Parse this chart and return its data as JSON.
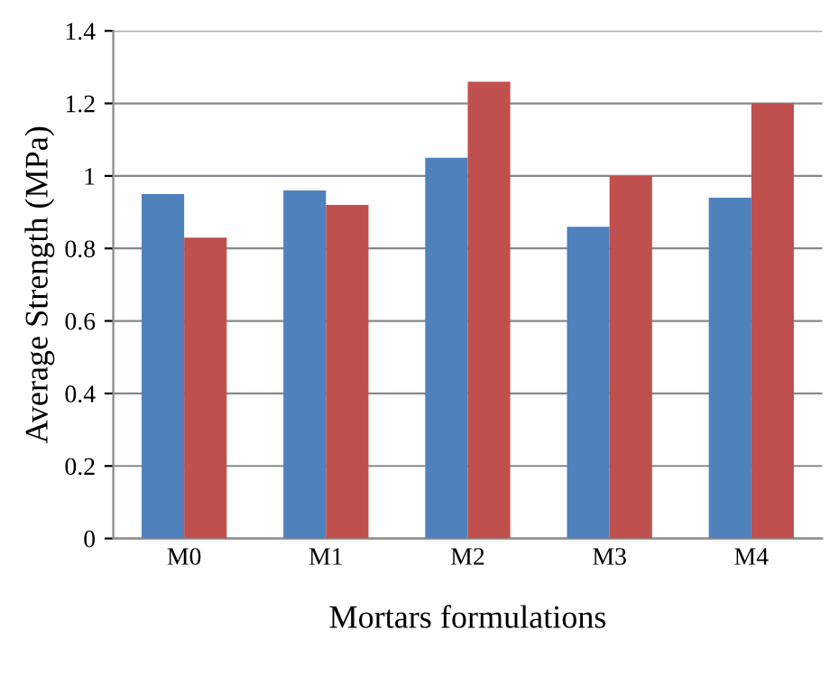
{
  "chart_data": {
    "type": "bar",
    "xlabel": "Mortars formulations",
    "ylabel": "Average Strength (MPa)",
    "categories": [
      "M0",
      "M1",
      "M2",
      "M3",
      "M4"
    ],
    "series": [
      {
        "color": "#4f81bd",
        "values": [
          0.95,
          0.96,
          1.05,
          0.86,
          0.94
        ]
      },
      {
        "color": "#c0504d",
        "values": [
          0.83,
          0.92,
          1.26,
          1.0,
          1.2
        ]
      }
    ],
    "ylim": [
      0,
      1.4
    ],
    "yticks": [
      0,
      0.2,
      0.4,
      0.6,
      0.8,
      1,
      1.2,
      1.4
    ],
    "grid": "y",
    "legend": false
  }
}
